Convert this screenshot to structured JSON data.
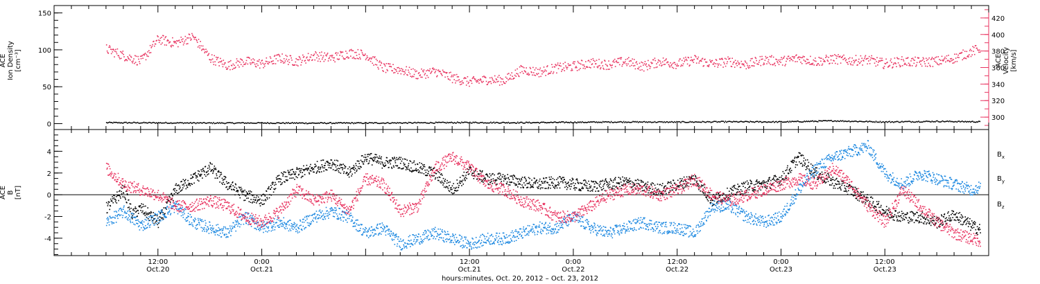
{
  "chart_data": [
    {
      "type": "scatter",
      "panel": "top",
      "ylabel_lines": [
        "ACE",
        "Ion Density",
        "[cm⁻³]"
      ],
      "ylim": [
        -8,
        160
      ],
      "yticks": [
        0,
        50,
        100,
        150
      ],
      "right_axis": {
        "label_lines": [
          "ACE",
          "Velocity",
          "[km/s]"
        ],
        "ylim": [
          285,
          435
        ],
        "yticks": [
          300,
          320,
          340,
          360,
          380,
          400,
          420
        ],
        "color": "#e8325f"
      },
      "series": [
        {
          "axis": "left",
          "color": "#000000",
          "points": [
            [
              0,
              2
            ],
            [
              6,
              1.8
            ],
            [
              12,
              1.5
            ],
            [
              18,
              1.6
            ],
            [
              24,
              1.4
            ],
            [
              30,
              1.5
            ],
            [
              36,
              1.8
            ],
            [
              42,
              2.2
            ],
            [
              48,
              2.0
            ],
            [
              54,
              2.5
            ],
            [
              60,
              3.0
            ],
            [
              66,
              2.8
            ],
            [
              72,
              3.2
            ],
            [
              78,
              3.0
            ],
            [
              84,
              4.5
            ],
            [
              90,
              3.0
            ],
            [
              96,
              3.8
            ],
            [
              101,
              3.2
            ]
          ]
        },
        {
          "axis": "right",
          "color": "#e8325f",
          "points": [
            [
              0,
              383
            ],
            [
              2,
              375
            ],
            [
              4,
              368
            ],
            [
              6,
              395
            ],
            [
              8,
              390
            ],
            [
              10,
              398
            ],
            [
              12,
              372
            ],
            [
              14,
              363
            ],
            [
              16,
              368
            ],
            [
              18,
              365
            ],
            [
              20,
              372
            ],
            [
              22,
              368
            ],
            [
              24,
              375
            ],
            [
              26,
              372
            ],
            [
              28,
              378
            ],
            [
              30,
              376
            ],
            [
              32,
              360
            ],
            [
              34,
              358
            ],
            [
              36,
              352
            ],
            [
              38,
              356
            ],
            [
              40,
              348
            ],
            [
              42,
              343
            ],
            [
              44,
              346
            ],
            [
              46,
              345
            ],
            [
              48,
              358
            ],
            [
              50,
              355
            ],
            [
              52,
              360
            ],
            [
              54,
              362
            ],
            [
              56,
              366
            ],
            [
              58,
              364
            ],
            [
              60,
              368
            ],
            [
              62,
              362
            ],
            [
              64,
              368
            ],
            [
              66,
              365
            ],
            [
              68,
              370
            ],
            [
              70,
              365
            ],
            [
              72,
              368
            ],
            [
              74,
              364
            ],
            [
              76,
              370
            ],
            [
              78,
              368
            ],
            [
              80,
              372
            ],
            [
              82,
              368
            ],
            [
              84,
              371
            ],
            [
              86,
              369
            ],
            [
              88,
              370
            ],
            [
              90,
              365
            ],
            [
              92,
              368
            ],
            [
              94,
              367
            ],
            [
              96,
              368
            ],
            [
              98,
              372
            ],
            [
              100,
              380
            ],
            [
              101,
              384
            ]
          ]
        }
      ]
    },
    {
      "type": "scatter",
      "panel": "bottom",
      "ylabel_lines": [
        "ACE",
        "B",
        "[nT]"
      ],
      "ylim": [
        -5.6,
        6
      ],
      "yticks": [
        -4,
        -2,
        0,
        2,
        4
      ],
      "hline": 0,
      "x_axis": {
        "label": "hours:minutes, Oct. 20, 2012 – Oct. 23, 2012",
        "xlim": [
          -6,
          102
        ],
        "ticks": [
          {
            "x": 6,
            "time": "12:00",
            "date": "Oct.20"
          },
          {
            "x": 18,
            "time": "0:00",
            "date": "Oct.21"
          },
          {
            "x": 42,
            "time": "12:00",
            "date": "Oct.21"
          },
          {
            "x": 54,
            "time": "0:00",
            "date": "Oct.22"
          },
          {
            "x": 66,
            "time": "12:00",
            "date": "Oct.22"
          },
          {
            "x": 78,
            "time": "0:00",
            "date": "Oct.23"
          },
          {
            "x": 90,
            "time": "12:00",
            "date": "Oct.23"
          }
        ]
      },
      "series": [
        {
          "name": "B",
          "sub": "x",
          "color": "#000000",
          "points": [
            [
              0,
              -1.2
            ],
            [
              2,
              0.5
            ],
            [
              3,
              -1.8
            ],
            [
              4,
              -1.2
            ],
            [
              6,
              -2.5
            ],
            [
              8,
              0.5
            ],
            [
              10,
              1.5
            ],
            [
              12,
              2.5
            ],
            [
              14,
              1
            ],
            [
              16,
              0
            ],
            [
              18,
              -0.5
            ],
            [
              20,
              1.5
            ],
            [
              22,
              2
            ],
            [
              24,
              2.5
            ],
            [
              26,
              3
            ],
            [
              28,
              2
            ],
            [
              30,
              3.5
            ],
            [
              32,
              3
            ],
            [
              34,
              3
            ],
            [
              36,
              2.5
            ],
            [
              38,
              2
            ],
            [
              40,
              0.5
            ],
            [
              42,
              2.2
            ],
            [
              44,
              1.5
            ],
            [
              46,
              1.5
            ],
            [
              48,
              1.2
            ],
            [
              50,
              1
            ],
            [
              52,
              1.2
            ],
            [
              54,
              1
            ],
            [
              56,
              0.8
            ],
            [
              58,
              1
            ],
            [
              60,
              1.2
            ],
            [
              62,
              0.8
            ],
            [
              64,
              0.5
            ],
            [
              66,
              1
            ],
            [
              68,
              1.5
            ],
            [
              70,
              -0.5
            ],
            [
              72,
              0.2
            ],
            [
              74,
              0.8
            ],
            [
              76,
              1
            ],
            [
              78,
              1.5
            ],
            [
              80,
              3.5
            ],
            [
              82,
              2
            ],
            [
              84,
              1.2
            ],
            [
              86,
              0.5
            ],
            [
              88,
              -0.5
            ],
            [
              90,
              -1.5
            ],
            [
              92,
              -2
            ],
            [
              94,
              -2
            ],
            [
              96,
              -2.5
            ],
            [
              98,
              -1.8
            ],
            [
              100,
              -2.8
            ],
            [
              101,
              -3.2
            ]
          ]
        },
        {
          "name": "B",
          "sub": "y",
          "color": "#1a87e0",
          "points": [
            [
              0,
              -2.5
            ],
            [
              2,
              -1.5
            ],
            [
              4,
              -2.8
            ],
            [
              6,
              -2
            ],
            [
              8,
              -1
            ],
            [
              10,
              -2.5
            ],
            [
              12,
              -3
            ],
            [
              14,
              -3.5
            ],
            [
              16,
              -2
            ],
            [
              18,
              -3
            ],
            [
              20,
              -2.5
            ],
            [
              22,
              -3
            ],
            [
              24,
              -2
            ],
            [
              26,
              -1.5
            ],
            [
              28,
              -2
            ],
            [
              30,
              -3.5
            ],
            [
              32,
              -3
            ],
            [
              34,
              -4.5
            ],
            [
              36,
              -4
            ],
            [
              38,
              -3.5
            ],
            [
              40,
              -4
            ],
            [
              42,
              -4.5
            ],
            [
              44,
              -4
            ],
            [
              46,
              -4
            ],
            [
              48,
              -3.5
            ],
            [
              50,
              -3
            ],
            [
              52,
              -3
            ],
            [
              54,
              -2
            ],
            [
              56,
              -3
            ],
            [
              58,
              -3.5
            ],
            [
              60,
              -3
            ],
            [
              62,
              -2.5
            ],
            [
              64,
              -3
            ],
            [
              66,
              -3
            ],
            [
              68,
              -3.5
            ],
            [
              70,
              -1
            ],
            [
              72,
              -1
            ],
            [
              74,
              -2
            ],
            [
              76,
              -2.5
            ],
            [
              78,
              -2
            ],
            [
              80,
              0.5
            ],
            [
              82,
              2.5
            ],
            [
              84,
              3.5
            ],
            [
              86,
              4
            ],
            [
              88,
              4.5
            ],
            [
              90,
              2
            ],
            [
              92,
              1
            ],
            [
              94,
              2
            ],
            [
              96,
              1.5
            ],
            [
              98,
              1
            ],
            [
              100,
              0.5
            ],
            [
              101,
              0.8
            ]
          ]
        },
        {
          "name": "B",
          "sub": "z",
          "color": "#e8325f",
          "points": [
            [
              0,
              2.5
            ],
            [
              2,
              1
            ],
            [
              4,
              0.5
            ],
            [
              6,
              0
            ],
            [
              8,
              -1
            ],
            [
              10,
              -1
            ],
            [
              12,
              -0.5
            ],
            [
              14,
              -1
            ],
            [
              16,
              -2
            ],
            [
              18,
              -2.5
            ],
            [
              20,
              -1.5
            ],
            [
              22,
              0.5
            ],
            [
              24,
              -0.5
            ],
            [
              26,
              0
            ],
            [
              28,
              -1.5
            ],
            [
              30,
              1.5
            ],
            [
              32,
              1
            ],
            [
              34,
              -1.5
            ],
            [
              36,
              -1
            ],
            [
              38,
              2.5
            ],
            [
              40,
              3.5
            ],
            [
              42,
              2.5
            ],
            [
              44,
              1
            ],
            [
              46,
              0.5
            ],
            [
              48,
              -0.5
            ],
            [
              50,
              -1
            ],
            [
              52,
              -2
            ],
            [
              54,
              -2
            ],
            [
              56,
              -1
            ],
            [
              58,
              0
            ],
            [
              60,
              0.5
            ],
            [
              62,
              0.5
            ],
            [
              64,
              0
            ],
            [
              66,
              0.5
            ],
            [
              68,
              1.5
            ],
            [
              70,
              0
            ],
            [
              72,
              -0.5
            ],
            [
              74,
              0
            ],
            [
              76,
              0.5
            ],
            [
              78,
              1
            ],
            [
              80,
              1.5
            ],
            [
              82,
              1
            ],
            [
              84,
              2.5
            ],
            [
              86,
              1
            ],
            [
              88,
              -1
            ],
            [
              90,
              -2.5
            ],
            [
              92,
              0.5
            ],
            [
              94,
              -1
            ],
            [
              96,
              -2.5
            ],
            [
              98,
              -3.5
            ],
            [
              100,
              -4
            ],
            [
              101,
              -4.2
            ]
          ]
        }
      ]
    }
  ]
}
